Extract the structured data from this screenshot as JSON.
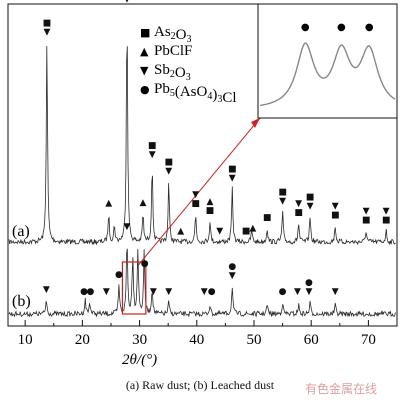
{
  "chart_data": {
    "type": "line",
    "xlabel": "2θ/(°)",
    "xlim": [
      7,
      75
    ],
    "xticks": [
      10,
      20,
      30,
      40,
      50,
      60,
      70
    ],
    "grid": false,
    "series": [
      {
        "label": "(a)",
        "peaks": [
          {
            "x": 13.8,
            "h": 0.86
          },
          {
            "x": 24.6,
            "h": 0.12
          },
          {
            "x": 25.6,
            "h": 0.07
          },
          {
            "x": 27.8,
            "h": 1.0
          },
          {
            "x": 30.6,
            "h": 0.12
          },
          {
            "x": 32.2,
            "h": 0.33
          },
          {
            "x": 35.1,
            "h": 0.26
          },
          {
            "x": 39.8,
            "h": 0.12
          },
          {
            "x": 42.3,
            "h": 0.09
          },
          {
            "x": 46.2,
            "h": 0.23
          },
          {
            "x": 49.6,
            "h": 0.05
          },
          {
            "x": 52.3,
            "h": 0.06
          },
          {
            "x": 55.0,
            "h": 0.13
          },
          {
            "x": 57.8,
            "h": 0.08
          },
          {
            "x": 59.8,
            "h": 0.11
          },
          {
            "x": 64.2,
            "h": 0.07
          },
          {
            "x": 69.6,
            "h": 0.05
          },
          {
            "x": 73.1,
            "h": 0.05
          }
        ],
        "markers": [
          {
            "x": 13.8,
            "sym": "■▼"
          },
          {
            "x": 24.6,
            "sym": "▲"
          },
          {
            "x": 27.8,
            "sym": "■▼"
          },
          {
            "x": 30.6,
            "sym": "▲"
          },
          {
            "x": 32.2,
            "sym": "■▼"
          },
          {
            "x": 35.1,
            "sym": "■▼"
          },
          {
            "x": 37.2,
            "sym": "▲"
          },
          {
            "x": 39.8,
            "sym": "▼■"
          },
          {
            "x": 42.3,
            "sym": "▲■"
          },
          {
            "x": 44.0,
            "sym": "▼"
          },
          {
            "x": 46.2,
            "sym": "■▼"
          },
          {
            "x": 48.6,
            "sym": "■"
          },
          {
            "x": 49.8,
            "sym": "▲"
          },
          {
            "x": 52.3,
            "sym": "■"
          },
          {
            "x": 55.0,
            "sym": "■▼"
          },
          {
            "x": 57.8,
            "sym": "▼■"
          },
          {
            "x": 59.8,
            "sym": "■▼"
          },
          {
            "x": 64.2,
            "sym": "▼■"
          },
          {
            "x": 69.6,
            "sym": "▼■"
          },
          {
            "x": 73.1,
            "sym": "▼■"
          }
        ]
      },
      {
        "label": "(b)",
        "peaks": [
          {
            "x": 13.7,
            "h": 0.06
          },
          {
            "x": 20.5,
            "h": 0.06
          },
          {
            "x": 21.3,
            "h": 0.05
          },
          {
            "x": 26.4,
            "h": 0.12
          },
          {
            "x": 27.8,
            "h": 0.32
          },
          {
            "x": 28.8,
            "h": 0.25
          },
          {
            "x": 29.7,
            "h": 0.27
          },
          {
            "x": 30.8,
            "h": 0.26
          },
          {
            "x": 32.2,
            "h": 0.11
          },
          {
            "x": 35.1,
            "h": 0.05
          },
          {
            "x": 42.3,
            "h": 0.04
          },
          {
            "x": 46.2,
            "h": 0.12
          },
          {
            "x": 52.3,
            "h": 0.04
          },
          {
            "x": 55.0,
            "h": 0.05
          },
          {
            "x": 57.8,
            "h": 0.04
          },
          {
            "x": 59.8,
            "h": 0.05
          },
          {
            "x": 64.2,
            "h": 0.04
          }
        ],
        "markers": [
          {
            "x": 13.7,
            "sym": "▼"
          },
          {
            "x": 20.3,
            "sym": "●"
          },
          {
            "x": 21.4,
            "sym": "●"
          },
          {
            "x": 24.2,
            "sym": "▼"
          },
          {
            "x": 26.4,
            "sym": "●"
          },
          {
            "x": 27.8,
            "sym": "▼"
          },
          {
            "x": 30.9,
            "sym": "●"
          },
          {
            "x": 32.4,
            "sym": "▼"
          },
          {
            "x": 35.1,
            "sym": "▼"
          },
          {
            "x": 41.3,
            "sym": "▼"
          },
          {
            "x": 42.6,
            "sym": "●"
          },
          {
            "x": 46.2,
            "sym": "●▼"
          },
          {
            "x": 55.0,
            "sym": "●"
          },
          {
            "x": 57.6,
            "sym": "▼"
          },
          {
            "x": 59.6,
            "sym": "●▼"
          },
          {
            "x": 64.2,
            "sym": "▼"
          }
        ]
      }
    ],
    "inset": {
      "x": [
        26.5,
        31.5
      ],
      "peaks": [
        {
          "x": 28.2,
          "h": 0.9
        },
        {
          "x": 29.5,
          "h": 0.78
        },
        {
          "x": 30.5,
          "h": 0.82
        }
      ],
      "markers": [
        {
          "x": 28.2,
          "sym": "●"
        },
        {
          "x": 29.5,
          "sym": "●"
        },
        {
          "x": 30.5,
          "sym": "●"
        }
      ]
    },
    "legend": {
      "position": "top-right",
      "entries": [
        {
          "symbol": "■",
          "formula": [
            "As",
            {
              "sub": "2"
            },
            "O",
            {
              "sub": "3"
            }
          ]
        },
        {
          "symbol": "▲",
          "formula": [
            "PbClF"
          ]
        },
        {
          "symbol": "▼",
          "formula": [
            "Sb",
            {
              "sub": "2"
            },
            "O",
            {
              "sub": "3"
            }
          ]
        },
        {
          "symbol": "●",
          "formula": [
            "Pb",
            {
              "sub": "5"
            },
            "(AsO",
            {
              "sub": "4"
            },
            ")",
            {
              "sub": "3"
            },
            "Cl"
          ]
        }
      ]
    }
  },
  "caption": "(a) Raw  dust; (b) Leached dust",
  "watermark": "有色金属在线",
  "colors": {
    "line": "#2a2a2a",
    "connector": "#cc2222",
    "watermark": "#d9a0a0"
  }
}
